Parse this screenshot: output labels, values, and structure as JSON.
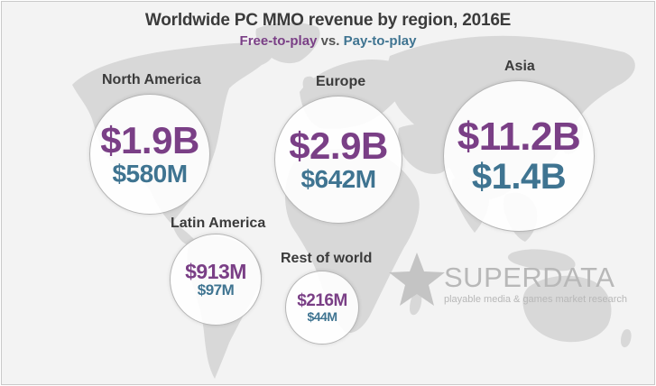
{
  "header": {
    "title": "Worldwide PC MMO revenue by region, 2016E",
    "subtitle_ftp": "Free-to-play",
    "subtitle_vs": "vs.",
    "subtitle_ptp": "Pay-to-play"
  },
  "colors": {
    "free_to_play": "#7a3f86",
    "pay_to_play": "#3f7491",
    "map": "#d8d8d8",
    "background": "#f3f3f3"
  },
  "chart_data": {
    "type": "bubble",
    "units": "USD",
    "series": [
      {
        "name": "Free-to-play",
        "color": "#7a3f86"
      },
      {
        "name": "Pay-to-play",
        "color": "#3f7491"
      }
    ],
    "regions": [
      {
        "name": "North America",
        "free_to_play": 1.9,
        "pay_to_play": 0.58,
        "free_to_play_label": "$1.9B",
        "pay_to_play_label": "$580M"
      },
      {
        "name": "Europe",
        "free_to_play": 2.9,
        "pay_to_play": 0.642,
        "free_to_play_label": "$2.9B",
        "pay_to_play_label": "$642M"
      },
      {
        "name": "Asia",
        "free_to_play": 11.2,
        "pay_to_play": 1.4,
        "free_to_play_label": "$11.2B",
        "pay_to_play_label": "$1.4B"
      },
      {
        "name": "Latin America",
        "free_to_play": 0.913,
        "pay_to_play": 0.097,
        "free_to_play_label": "$913M",
        "pay_to_play_label": "$97M"
      },
      {
        "name": "Rest of world",
        "free_to_play": 0.216,
        "pay_to_play": 0.044,
        "free_to_play_label": "$216M",
        "pay_to_play_label": "$44M"
      }
    ]
  },
  "brand": {
    "name": "SUPERDATA",
    "tagline": "playable media & games market research",
    "logo_icon": "star-icon"
  }
}
